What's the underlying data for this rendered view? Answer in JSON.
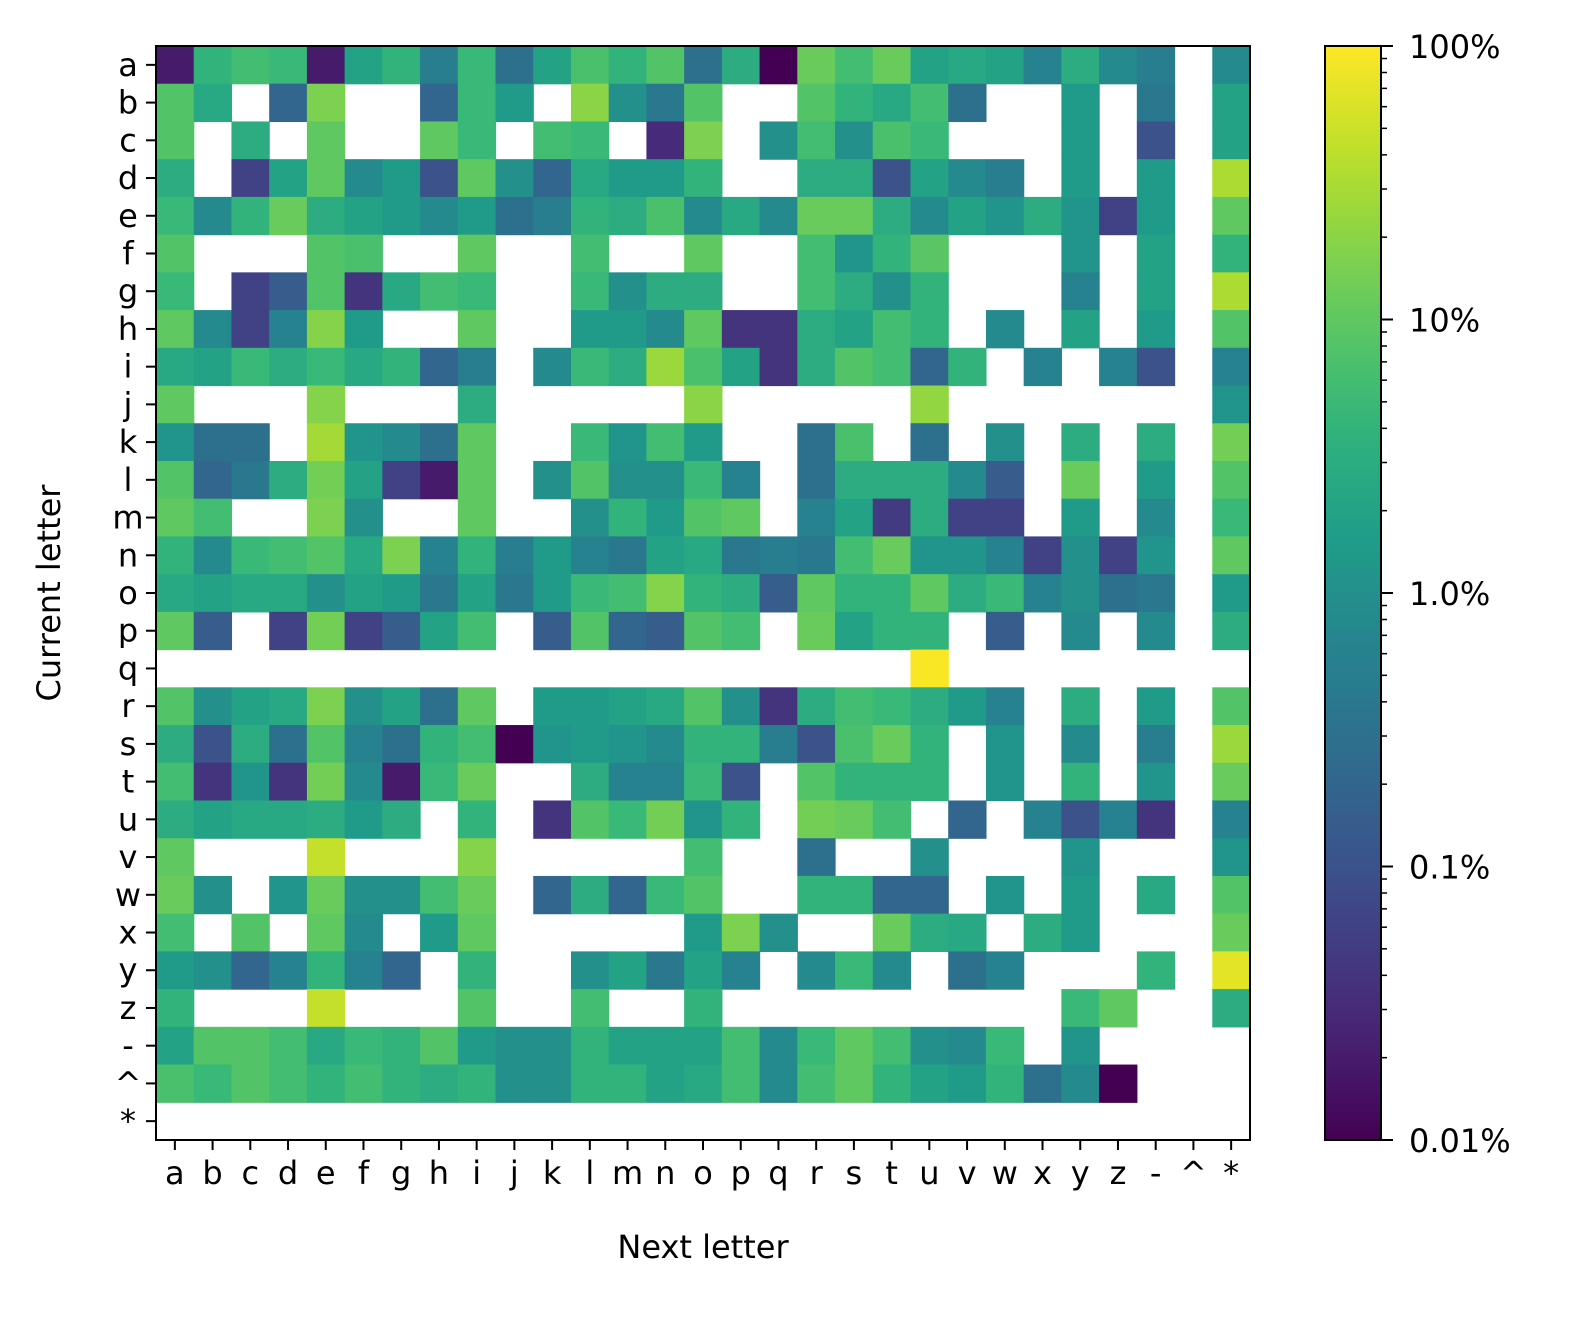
{
  "chart_data": {
    "type": "heatmap",
    "title": "",
    "xlabel": "Next letter",
    "ylabel": "Current letter",
    "x_categories": [
      "a",
      "b",
      "c",
      "d",
      "e",
      "f",
      "g",
      "h",
      "i",
      "j",
      "k",
      "l",
      "m",
      "n",
      "o",
      "p",
      "q",
      "r",
      "s",
      "t",
      "u",
      "v",
      "w",
      "x",
      "y",
      "z",
      "-",
      "^",
      "*"
    ],
    "y_categories": [
      "a",
      "b",
      "c",
      "d",
      "e",
      "f",
      "g",
      "h",
      "i",
      "j",
      "k",
      "l",
      "m",
      "n",
      "o",
      "p",
      "q",
      "r",
      "s",
      "t",
      "u",
      "v",
      "w",
      "x",
      "y",
      "z",
      "-",
      "^",
      "*"
    ],
    "value_units": "percent",
    "color_scale": "log",
    "colormap": "viridis",
    "color_range": [
      0.01,
      100
    ],
    "colorbar_ticks": [
      "100%",
      "10%",
      "1.0%",
      "0.1%",
      "0.01%"
    ],
    "missing_value_color": "#ffffff",
    "note_missing": "null = no transition (white cell)",
    "values": [
      [
        0.02,
        4,
        6,
        5,
        0.02,
        2,
        4,
        0.5,
        5,
        0.3,
        2,
        7,
        4,
        8,
        0.3,
        3,
        0.01,
        12,
        6,
        12,
        2,
        2.5,
        2,
        0.6,
        3,
        0.8,
        0.5,
        null,
        0.8
      ],
      [
        8,
        2.5,
        null,
        0.2,
        16,
        null,
        null,
        0.2,
        5,
        1.5,
        null,
        20,
        1,
        0.4,
        8,
        null,
        null,
        8,
        4,
        2.5,
        6,
        0.3,
        null,
        null,
        1.5,
        null,
        0.4,
        null,
        2
      ],
      [
        8,
        null,
        3,
        null,
        10,
        null,
        null,
        10,
        5,
        null,
        6,
        5,
        null,
        0.03,
        16,
        null,
        1,
        6,
        1,
        7,
        5,
        null,
        null,
        null,
        1.5,
        null,
        0.1,
        null,
        2
      ],
      [
        3,
        null,
        0.06,
        2,
        10,
        0.8,
        1.5,
        0.1,
        10,
        1,
        0.2,
        2.5,
        1.5,
        1.5,
        4,
        null,
        null,
        3,
        3,
        0.1,
        2,
        0.8,
        0.5,
        null,
        1.5,
        null,
        1.5,
        null,
        32
      ],
      [
        5,
        0.8,
        4,
        12,
        3,
        2,
        1.5,
        0.8,
        1.5,
        0.3,
        0.5,
        4,
        3,
        7,
        0.8,
        2.5,
        0.8,
        12,
        12,
        3,
        0.8,
        2,
        1.2,
        3,
        1.2,
        0.06,
        1.5,
        null,
        10
      ],
      [
        8,
        null,
        null,
        null,
        8,
        7,
        null,
        null,
        10,
        null,
        null,
        6,
        null,
        null,
        10,
        null,
        null,
        6,
        1.2,
        4,
        9,
        null,
        null,
        null,
        1.2,
        null,
        2,
        null,
        4
      ],
      [
        5,
        null,
        0.06,
        0.15,
        8,
        0.04,
        2.5,
        6,
        5,
        null,
        null,
        5,
        1,
        3,
        3,
        null,
        null,
        6,
        3,
        1,
        4,
        null,
        null,
        null,
        0.6,
        null,
        2,
        null,
        32
      ],
      [
        10,
        0.8,
        0.06,
        0.6,
        18,
        1.5,
        null,
        null,
        10,
        null,
        null,
        1.5,
        1.5,
        0.8,
        10,
        0.04,
        0.04,
        3,
        2,
        6,
        4,
        null,
        0.8,
        null,
        2,
        null,
        1.5,
        null,
        8
      ],
      [
        2.5,
        2,
        5,
        3,
        5,
        2.5,
        4,
        0.2,
        0.5,
        null,
        0.8,
        5,
        3,
        25,
        7,
        2,
        0.04,
        3,
        8,
        6,
        0.2,
        4,
        null,
        0.6,
        null,
        0.6,
        0.1,
        null,
        0.6
      ],
      [
        10,
        null,
        null,
        null,
        18,
        null,
        null,
        null,
        3,
        null,
        null,
        null,
        null,
        null,
        20,
        null,
        null,
        null,
        null,
        null,
        22,
        null,
        null,
        null,
        null,
        null,
        null,
        null,
        1.2
      ],
      [
        1.2,
        0.3,
        0.3,
        null,
        28,
        1.2,
        0.8,
        0.3,
        10,
        null,
        null,
        5,
        1.2,
        6,
        1.5,
        null,
        null,
        0.3,
        7,
        null,
        0.3,
        null,
        1,
        null,
        3,
        null,
        3,
        null,
        14
      ],
      [
        8,
        0.2,
        0.4,
        3,
        14,
        2,
        0.06,
        0.02,
        10,
        null,
        1,
        8,
        1,
        1,
        5,
        0.6,
        null,
        0.3,
        3,
        3,
        3,
        0.8,
        0.15,
        null,
        12,
        null,
        1.5,
        null,
        8
      ],
      [
        10,
        6,
        null,
        null,
        16,
        1,
        null,
        null,
        10,
        null,
        null,
        1,
        4,
        1.5,
        8,
        10,
        null,
        0.6,
        2,
        0.05,
        3,
        0.06,
        0.06,
        null,
        1.5,
        null,
        0.8,
        null,
        5
      ],
      [
        4,
        0.8,
        5,
        6,
        8,
        2.5,
        16,
        0.6,
        4,
        0.5,
        1.5,
        0.6,
        0.4,
        2,
        2.5,
        0.4,
        0.5,
        0.4,
        6,
        12,
        1.2,
        1.2,
        0.6,
        0.06,
        1,
        0.06,
        1.2,
        null,
        10
      ],
      [
        2.5,
        2,
        2.5,
        2.5,
        1,
        2,
        1.5,
        0.4,
        2,
        0.4,
        1.5,
        5,
        6,
        18,
        4,
        3,
        0.15,
        10,
        4,
        4,
        10,
        3,
        5,
        0.6,
        1,
        0.3,
        0.4,
        null,
        1.5
      ],
      [
        10,
        0.15,
        null,
        0.06,
        14,
        0.06,
        0.15,
        2,
        6,
        null,
        0.15,
        8,
        0.2,
        0.15,
        8,
        6,
        null,
        12,
        2,
        4,
        4,
        null,
        0.15,
        null,
        0.8,
        null,
        0.8,
        null,
        3
      ],
      [
        null,
        null,
        null,
        null,
        null,
        null,
        null,
        null,
        null,
        null,
        null,
        null,
        null,
        null,
        null,
        null,
        null,
        null,
        null,
        null,
        95,
        null,
        null,
        null,
        null,
        null,
        null,
        null,
        null
      ],
      [
        8,
        1,
        2,
        2.5,
        16,
        1,
        2,
        0.3,
        10,
        null,
        1.5,
        1.5,
        2,
        2.5,
        8,
        1,
        0.04,
        3,
        6,
        5,
        3,
        1.5,
        0.6,
        null,
        3,
        null,
        1.5,
        null,
        8
      ],
      [
        3,
        0.1,
        3,
        0.3,
        8,
        0.6,
        0.3,
        4,
        6,
        0.01,
        1.2,
        1.5,
        1.2,
        0.8,
        4,
        4,
        0.5,
        0.1,
        7,
        12,
        4,
        null,
        1.2,
        null,
        0.8,
        null,
        0.5,
        null,
        25
      ],
      [
        6,
        0.04,
        1.2,
        0.04,
        14,
        0.8,
        0.02,
        5,
        12,
        null,
        null,
        3,
        0.6,
        0.6,
        5,
        0.1,
        null,
        8,
        4,
        4,
        4,
        null,
        1.2,
        null,
        4,
        null,
        1.2,
        null,
        12
      ],
      [
        3,
        2,
        2.5,
        2.5,
        3,
        1.5,
        3,
        null,
        4,
        null,
        0.04,
        8,
        5,
        14,
        1.2,
        4,
        null,
        14,
        12,
        6,
        null,
        0.2,
        null,
        0.6,
        0.1,
        0.6,
        0.04,
        null,
        0.6
      ],
      [
        10,
        null,
        null,
        null,
        45,
        null,
        null,
        null,
        18,
        null,
        null,
        null,
        null,
        null,
        6,
        null,
        null,
        0.3,
        null,
        null,
        1,
        null,
        null,
        null,
        1.2,
        null,
        null,
        null,
        1.2
      ],
      [
        12,
        1,
        null,
        1.2,
        12,
        1,
        1,
        6,
        12,
        null,
        0.2,
        3,
        0.2,
        5,
        8,
        null,
        null,
        4,
        4,
        0.2,
        0.2,
        null,
        1.2,
        null,
        1.5,
        null,
        2.5,
        null,
        8
      ],
      [
        6,
        null,
        8,
        null,
        10,
        0.8,
        null,
        1.5,
        10,
        null,
        null,
        null,
        null,
        null,
        1.5,
        16,
        1,
        null,
        null,
        12,
        3,
        2.5,
        null,
        3,
        1.5,
        null,
        null,
        null,
        12
      ],
      [
        1.5,
        1,
        0.2,
        0.6,
        4,
        0.6,
        0.2,
        null,
        4,
        null,
        null,
        1,
        2,
        0.4,
        2,
        0.6,
        null,
        0.8,
        5,
        0.8,
        null,
        0.3,
        0.6,
        null,
        null,
        null,
        4,
        null,
        70
      ],
      [
        4,
        null,
        null,
        null,
        45,
        null,
        null,
        null,
        8,
        null,
        null,
        6,
        null,
        null,
        4,
        null,
        null,
        null,
        null,
        null,
        null,
        null,
        null,
        null,
        5,
        10,
        null,
        null,
        3
      ],
      [
        2,
        8,
        8,
        6,
        2.5,
        5,
        4,
        8,
        1.5,
        1,
        1,
        4,
        2,
        2,
        2,
        6,
        0.8,
        5,
        10,
        6,
        1,
        0.8,
        5,
        null,
        1.2,
        null,
        null,
        null,
        null
      ],
      [
        7,
        5,
        8,
        6,
        4,
        6,
        4,
        3,
        4,
        1,
        1,
        4,
        4,
        2,
        2.5,
        6,
        0.8,
        6,
        10,
        4,
        2,
        1.5,
        4,
        0.3,
        0.8,
        0.01,
        null,
        null,
        null
      ],
      [
        null,
        null,
        null,
        null,
        null,
        null,
        null,
        null,
        null,
        null,
        null,
        null,
        null,
        null,
        null,
        null,
        null,
        null,
        null,
        null,
        null,
        null,
        null,
        null,
        null,
        null,
        null,
        null,
        null
      ]
    ]
  }
}
